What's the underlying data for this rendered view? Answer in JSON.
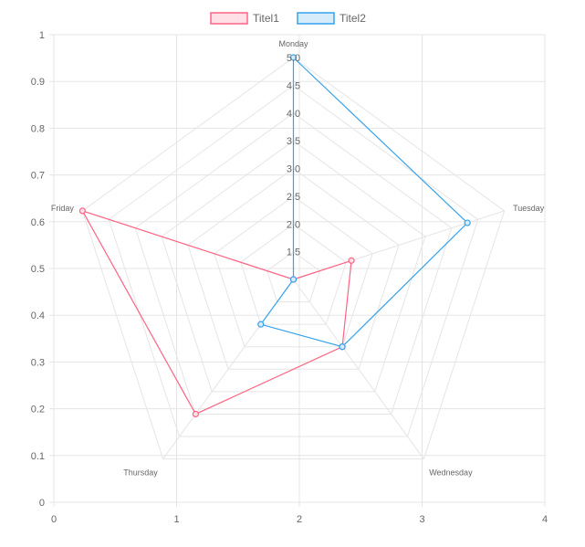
{
  "chart_data": {
    "type": "radar",
    "labels": [
      "Monday",
      "Tuesday",
      "Wednesday",
      "Thursday",
      "Friday"
    ],
    "radial_ticks": [
      "1.5",
      "2.0",
      "2.5",
      "3.0",
      "3.5",
      "4.0",
      "4.5",
      "5.0"
    ],
    "radial_range": [
      1,
      5
    ],
    "series": [
      {
        "name": "Titel1",
        "values": [
          1.0,
          2.1,
          2.5,
          4.0,
          5.0
        ]
      },
      {
        "name": "Titel2",
        "values": [
          5.0,
          4.3,
          2.5,
          2.0,
          1.0
        ]
      }
    ],
    "x_axis": {
      "ticks": [
        "0",
        "1",
        "2",
        "3",
        "4"
      ],
      "range": [
        0,
        4
      ]
    },
    "y_axis": {
      "ticks": [
        "0",
        "0.1",
        "0.2",
        "0.3",
        "0.4",
        "0.5",
        "0.6",
        "0.7",
        "0.8",
        "0.9",
        "1"
      ],
      "range": [
        0,
        1
      ]
    },
    "grid": true,
    "legend": "top-center"
  },
  "colors": {
    "Titel1_stroke": "#ff6384",
    "Titel1_fill": "#ffe0e6",
    "Titel2_stroke": "#36a2eb",
    "Titel2_fill": "#d7ecfb",
    "grid": "#e5e5e5",
    "text": "#666666"
  }
}
